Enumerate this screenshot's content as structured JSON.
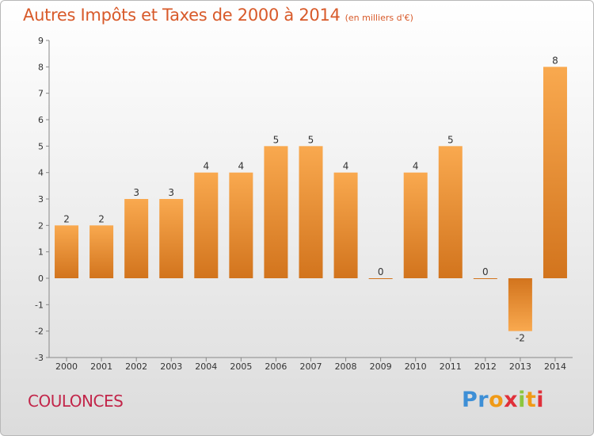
{
  "header": {
    "title": "Autres Impôts et Taxes de 2000 à 2014",
    "unit": "(en milliers d'€)"
  },
  "footer": {
    "commune": "COULONCES",
    "logo": "Proxiti"
  },
  "colors": {
    "title": "#d85a2a",
    "commune": "#c2264a",
    "bar_light": "#f7a64f",
    "bar_dark": "#d4781f"
  },
  "chart_data": {
    "type": "bar",
    "title": "Autres Impôts et Taxes de 2000 à 2014",
    "xlabel": "",
    "ylabel": "",
    "ylim": [
      -3,
      9
    ],
    "yticks": [
      -3,
      -2,
      -1,
      0,
      1,
      2,
      3,
      4,
      5,
      6,
      7,
      8,
      9
    ],
    "ytick_labels": [
      "-3",
      "-2",
      "-1",
      "0",
      "1",
      "2",
      "3",
      "4",
      "5",
      "6",
      "7",
      "8",
      "9"
    ],
    "categories": [
      "2000",
      "2001",
      "2002",
      "2003",
      "2004",
      "2005",
      "2006",
      "2007",
      "2008",
      "2009",
      "2010",
      "2011",
      "2012",
      "2013",
      "2014"
    ],
    "values": [
      2,
      2,
      3,
      3,
      4,
      4,
      5,
      5,
      4,
      0,
      4,
      5,
      0,
      -2,
      8
    ],
    "grid": false
  }
}
